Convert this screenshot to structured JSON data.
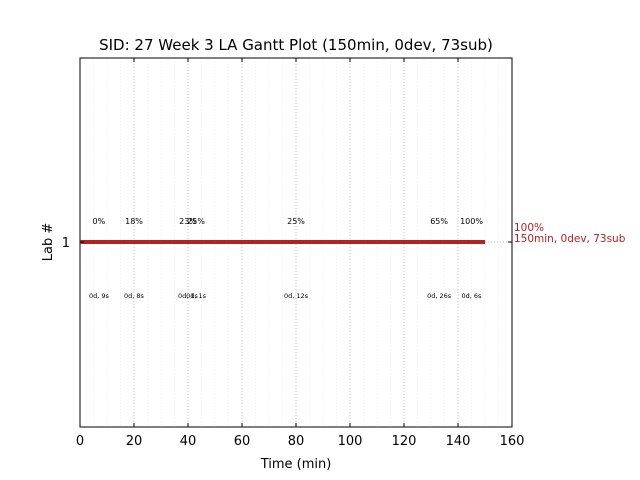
{
  "chart_data": {
    "type": "gantt",
    "title": "SID: 27 Week 3 LA Gantt Plot (150min, 0dev, 73sub)",
    "xlabel": "Time (min)",
    "ylabel": "Lab #",
    "xlim": [
      0,
      160
    ],
    "xticks": [
      "0",
      "20",
      "40",
      "60",
      "80",
      "100",
      "120",
      "140",
      "160"
    ],
    "yticks": [
      "1"
    ],
    "grid": true,
    "colors": {
      "bar": "#b22222",
      "end_label": "#b22222",
      "grid": "#aaaaaa"
    },
    "bar": {
      "lab": "1",
      "start": 0,
      "end": 150
    },
    "end_label": {
      "line1": "100%",
      "line2": "150min, 0dev, 73sub"
    },
    "milestones": [
      {
        "x": 7,
        "percent": "0%",
        "detail": "0d, 9s"
      },
      {
        "x": 20,
        "percent": "18%",
        "detail": "0d, 8s"
      },
      {
        "x": 40,
        "percent": "23%",
        "detail": "0d, 1s"
      },
      {
        "x": 43,
        "percent": "25%",
        "detail": "0d, 1s"
      },
      {
        "x": 80,
        "percent": "25%",
        "detail": "0d, 12s"
      },
      {
        "x": 133,
        "percent": "65%",
        "detail": "0d, 26s"
      },
      {
        "x": 145,
        "percent": "100%",
        "detail": "0d, 6s"
      }
    ]
  }
}
